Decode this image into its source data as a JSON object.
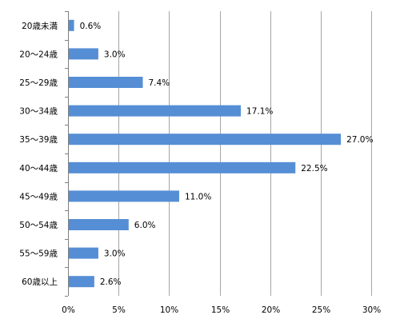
{
  "chart_data": {
    "type": "bar",
    "orientation": "horizontal",
    "categories": [
      "20歳未満",
      "20～24歳",
      "25～29歳",
      "30～34歳",
      "35～39歳",
      "40～44歳",
      "45～49歳",
      "50～54歳",
      "55～59歳",
      "60歳以上"
    ],
    "values": [
      0.6,
      3.0,
      7.4,
      17.1,
      27.0,
      22.5,
      11.0,
      6.0,
      3.0,
      2.6
    ],
    "value_labels": [
      "0.6%",
      "3.0%",
      "7.4%",
      "17.1%",
      "27.0%",
      "22.5%",
      "11.0%",
      "6.0%",
      "3.0%",
      "2.6%"
    ],
    "x_ticks": [
      "0%",
      "5%",
      "10%",
      "15%",
      "20%",
      "25%",
      "30%"
    ],
    "xlim": [
      0,
      30
    ],
    "grid": true,
    "legend": "none",
    "bar_color": "#558ED5",
    "grid_color": "#A6A6A6",
    "title": "",
    "xlabel": "",
    "ylabel": ""
  }
}
